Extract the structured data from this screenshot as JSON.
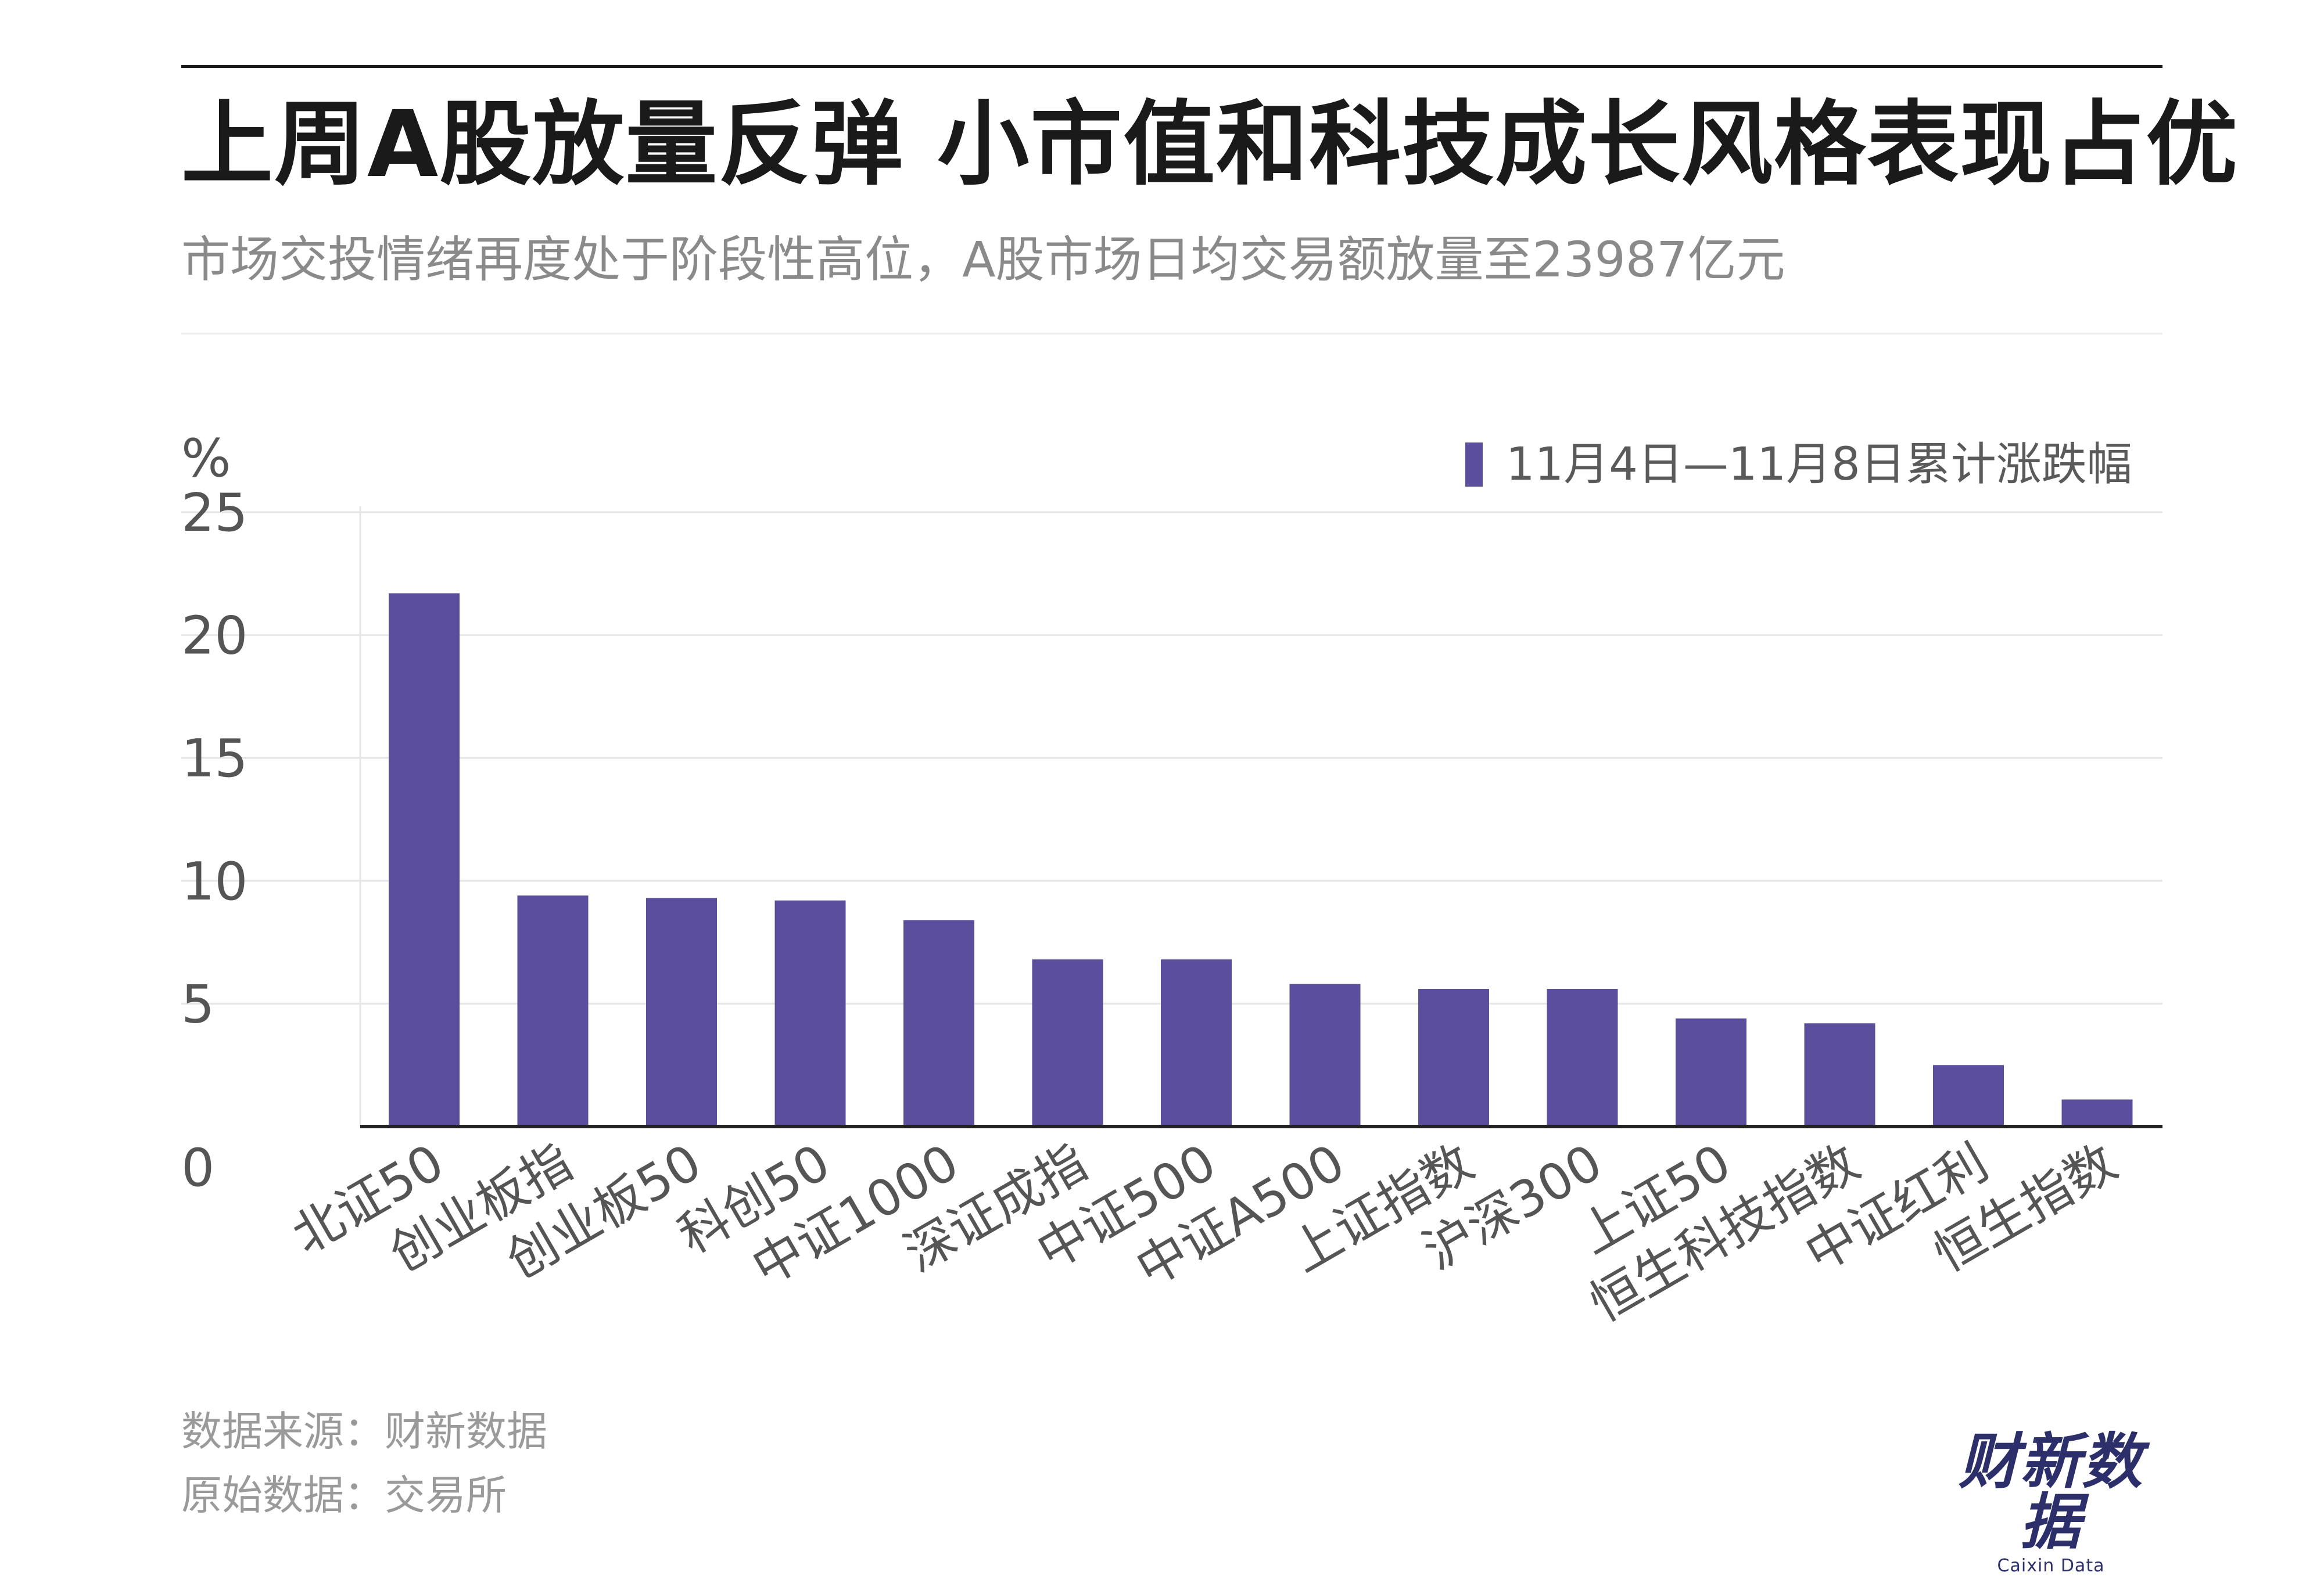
{
  "header": {
    "title": "上周A股放量反弹  小市值和科技成长风格表现占优",
    "subtitle": "市场交投情绪再度处于阶段性高位，A股市场日均交易额放量至23987亿元"
  },
  "footer": {
    "source": "数据来源：财新数据",
    "original": "原始数据：交易所"
  },
  "logo": {
    "text": "财新数据",
    "sub": "Caixin Data"
  },
  "colors": {
    "bar": "#5b4e9c",
    "grid": "#e6e6e6",
    "axis": "#222222",
    "tick_text": "#555555"
  },
  "chart_data": {
    "type": "bar",
    "unit_label": "%",
    "categories": [
      "北证50",
      "创业板指",
      "创业板50",
      "科创50",
      "中证1000",
      "深证成指",
      "中证500",
      "中证A500",
      "上证指数",
      "沪深300",
      "上证50",
      "恒生科技指数",
      "中证红利",
      "恒生指数"
    ],
    "series": [
      {
        "name": "11月4日—11月8日累计涨跌幅",
        "values": [
          21.7,
          9.4,
          9.3,
          9.2,
          8.4,
          6.8,
          6.8,
          5.8,
          5.6,
          5.6,
          4.4,
          4.2,
          2.5,
          1.1
        ]
      }
    ],
    "ylim": [
      0,
      25
    ],
    "yticks": [
      0,
      5,
      10,
      15,
      20,
      25
    ],
    "grid": true,
    "legend_position": "top-right"
  }
}
